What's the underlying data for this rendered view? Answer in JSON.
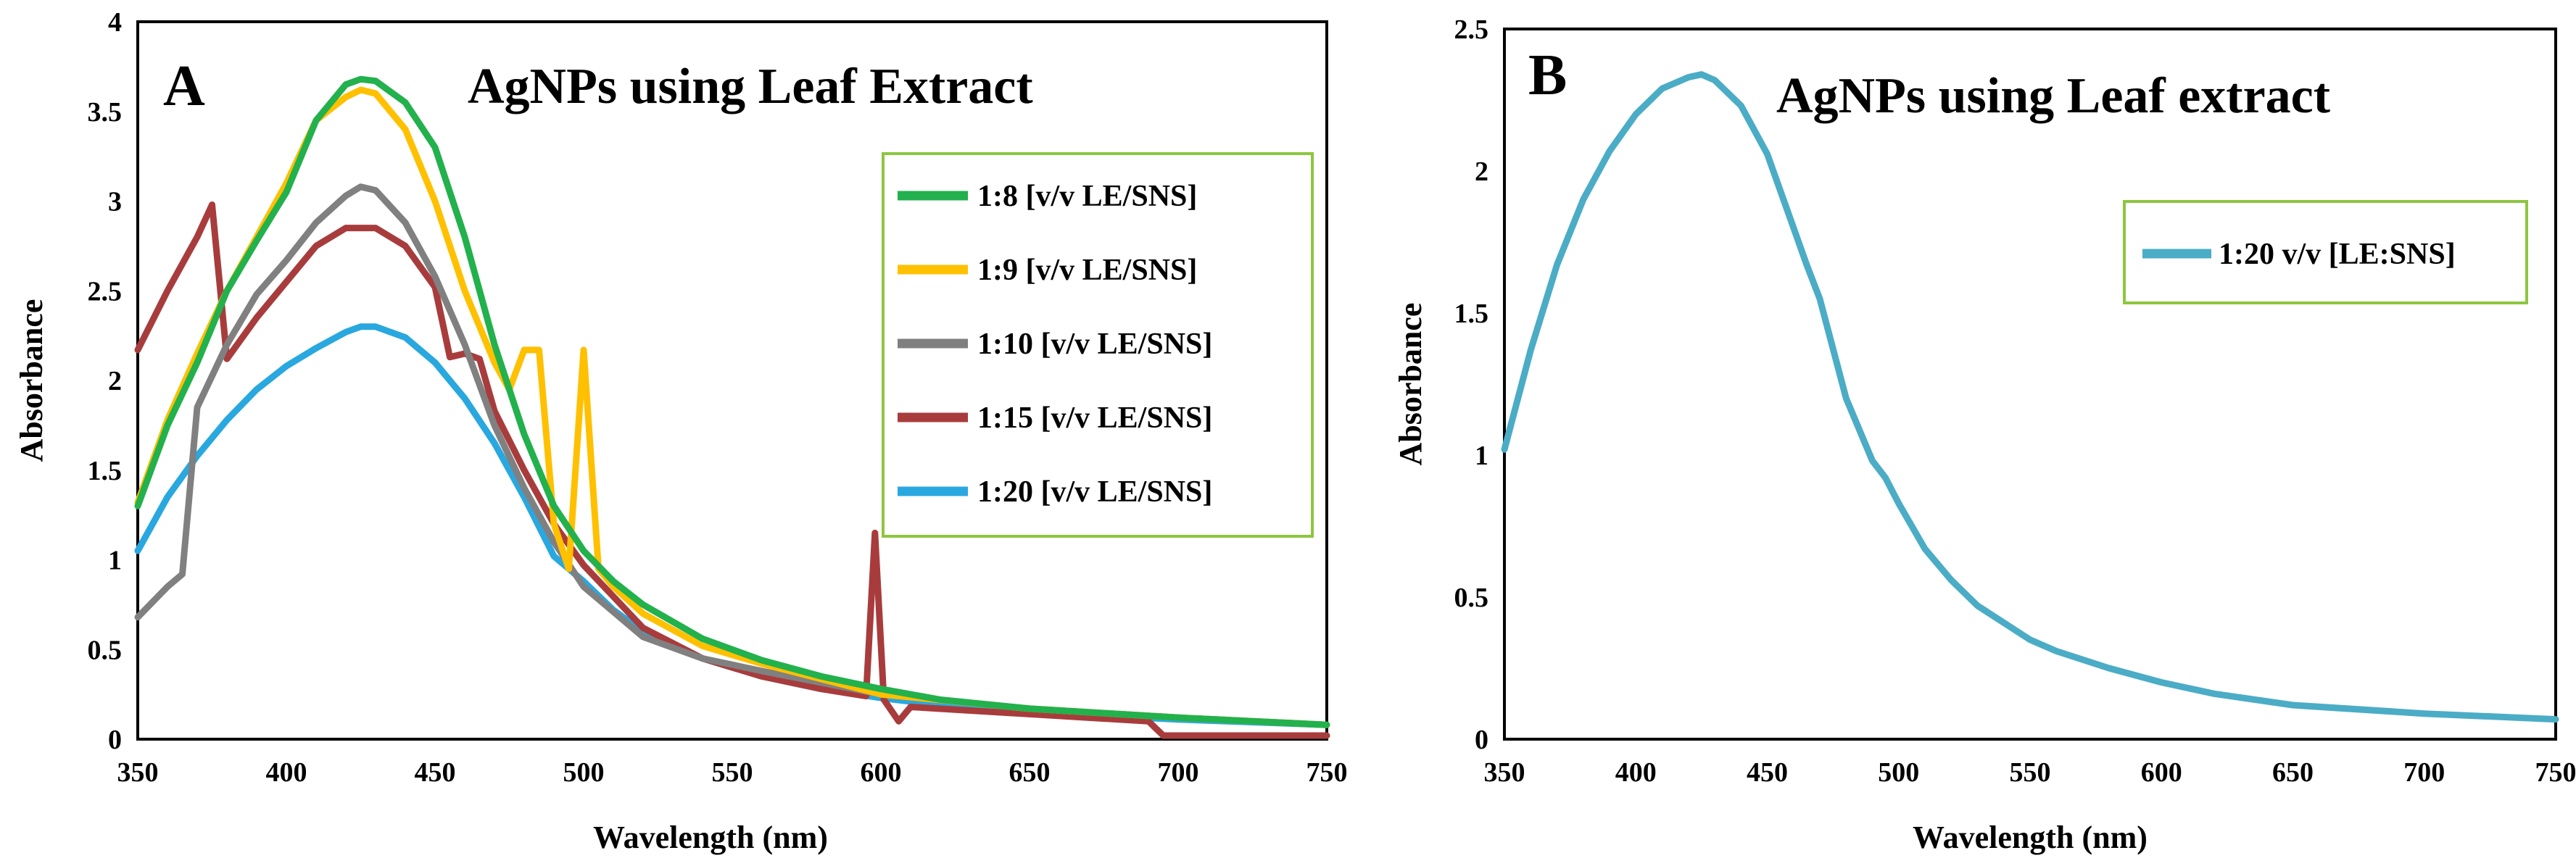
{
  "chart_data": [
    {
      "type": "line",
      "panel": "A",
      "title": "AgNPs using Leaf Extract",
      "xlabel": "Wavelength (nm)",
      "ylabel": "Absorbance",
      "xlim": [
        350,
        750
      ],
      "ylim": [
        0,
        4
      ],
      "xticks": [
        350,
        400,
        450,
        500,
        550,
        600,
        650,
        700,
        750
      ],
      "yticks": [
        0,
        0.5,
        1,
        1.5,
        2,
        2.5,
        3,
        3.5,
        4
      ],
      "ytick_labels": [
        "0",
        "0.5",
        "1",
        "1.5",
        "2",
        "2.5",
        "3",
        "3.5",
        "4"
      ],
      "legend_position": "top-right",
      "series": [
        {
          "name": "1:20 [v/v LE/SNS]",
          "color": "#29a8df",
          "x": [
            350,
            360,
            370,
            380,
            390,
            400,
            410,
            420,
            425,
            430,
            440,
            450,
            460,
            470,
            480,
            490,
            500,
            510,
            520,
            540,
            560,
            580,
            600,
            620,
            650,
            700,
            750
          ],
          "y": [
            1.05,
            1.35,
            1.58,
            1.78,
            1.95,
            2.08,
            2.18,
            2.27,
            2.3,
            2.3,
            2.24,
            2.1,
            1.9,
            1.65,
            1.35,
            1.02,
            0.88,
            0.72,
            0.6,
            0.45,
            0.35,
            0.28,
            0.23,
            0.19,
            0.15,
            0.11,
            0.08
          ]
        },
        {
          "name": "1:15 [v/v LE/SNS]",
          "color": "#a83c3c",
          "x": [
            350,
            360,
            370,
            375,
            380,
            390,
            400,
            410,
            420,
            430,
            440,
            450,
            455,
            460,
            465,
            470,
            480,
            490,
            500,
            520,
            540,
            560,
            580,
            595,
            598,
            601,
            606,
            610,
            650,
            690,
            695,
            750
          ],
          "y": [
            2.17,
            2.5,
            2.8,
            2.98,
            2.12,
            2.35,
            2.55,
            2.75,
            2.85,
            2.85,
            2.75,
            2.52,
            2.13,
            2.15,
            2.12,
            1.83,
            1.5,
            1.2,
            0.97,
            0.62,
            0.45,
            0.35,
            0.28,
            0.24,
            1.15,
            0.22,
            0.1,
            0.18,
            0.14,
            0.1,
            0.02,
            0.02
          ]
        },
        {
          "name": "1:10 [v/v LE/SNS]",
          "color": "#808080",
          "x": [
            350,
            360,
            365,
            370,
            380,
            390,
            400,
            410,
            420,
            425,
            430,
            440,
            450,
            460,
            470,
            480,
            490,
            500,
            520,
            540,
            560,
            600,
            650,
            700,
            750
          ],
          "y": [
            0.68,
            0.85,
            0.92,
            1.85,
            2.2,
            2.48,
            2.67,
            2.88,
            3.03,
            3.08,
            3.06,
            2.88,
            2.58,
            2.2,
            1.75,
            1.4,
            1.1,
            0.85,
            0.57,
            0.45,
            0.38,
            0.25,
            0.17,
            0.12,
            0.08
          ]
        },
        {
          "name": "1:9 [v/v LE/SNS]",
          "color": "#ffc000",
          "x": [
            350,
            360,
            370,
            380,
            390,
            400,
            410,
            420,
            425,
            430,
            440,
            450,
            460,
            470,
            475,
            480,
            485,
            490,
            495,
            500,
            505,
            510,
            520,
            540,
            560,
            600,
            650,
            700,
            750
          ],
          "y": [
            1.32,
            1.78,
            2.15,
            2.5,
            2.8,
            3.1,
            3.45,
            3.58,
            3.62,
            3.6,
            3.4,
            3.0,
            2.5,
            2.1,
            1.95,
            2.17,
            2.17,
            1.2,
            0.95,
            2.17,
            0.95,
            0.85,
            0.7,
            0.52,
            0.42,
            0.25,
            0.17,
            0.12,
            0.08
          ]
        },
        {
          "name": "1:8 [v/v LE/SNS]",
          "color": "#22b14c",
          "x": [
            350,
            360,
            370,
            380,
            390,
            400,
            410,
            420,
            425,
            430,
            440,
            450,
            460,
            470,
            480,
            490,
            500,
            510,
            520,
            540,
            560,
            580,
            600,
            620,
            650,
            700,
            750
          ],
          "y": [
            1.3,
            1.75,
            2.1,
            2.5,
            2.78,
            3.05,
            3.45,
            3.65,
            3.68,
            3.67,
            3.55,
            3.3,
            2.8,
            2.2,
            1.7,
            1.3,
            1.05,
            0.88,
            0.75,
            0.56,
            0.44,
            0.35,
            0.28,
            0.22,
            0.17,
            0.12,
            0.08
          ]
        }
      ],
      "legend_order": [
        "1:8 [v/v LE/SNS]",
        "1:9 [v/v LE/SNS]",
        "1:10 [v/v LE/SNS]",
        "1:15 [v/v LE/SNS]",
        "1:20 [v/v LE/SNS]"
      ],
      "legend_colors": [
        "#22b14c",
        "#ffc000",
        "#808080",
        "#a83c3c",
        "#29a8df"
      ],
      "legend_border_color": "#8dc63f"
    },
    {
      "type": "line",
      "panel": "B",
      "title": "AgNPs using Leaf extract",
      "xlabel": "Wavelength (nm)",
      "ylabel": "Absorbance",
      "xlim": [
        350,
        750
      ],
      "ylim": [
        0,
        2.5
      ],
      "xticks": [
        350,
        400,
        450,
        500,
        550,
        600,
        650,
        700,
        750
      ],
      "yticks": [
        0,
        0.5,
        1,
        1.5,
        2,
        2.5
      ],
      "ytick_labels": [
        "0",
        "0.5",
        "1",
        "1.5",
        "2",
        "2.5"
      ],
      "legend_position": "top-right",
      "series": [
        {
          "name": "1:20 v/v [LE:SNS]",
          "color": "#4bacc6",
          "x": [
            350,
            360,
            370,
            380,
            390,
            400,
            410,
            420,
            425,
            430,
            440,
            450,
            460,
            465,
            470,
            480,
            490,
            495,
            500,
            510,
            520,
            530,
            540,
            550,
            560,
            580,
            600,
            620,
            650,
            700,
            750
          ],
          "y": [
            1.02,
            1.37,
            1.67,
            1.9,
            2.07,
            2.2,
            2.29,
            2.33,
            2.34,
            2.32,
            2.23,
            2.06,
            1.8,
            1.67,
            1.55,
            1.2,
            0.98,
            0.92,
            0.83,
            0.67,
            0.56,
            0.47,
            0.41,
            0.35,
            0.31,
            0.25,
            0.2,
            0.16,
            0.12,
            0.09,
            0.07
          ]
        }
      ],
      "legend_colors": [
        "#4bacc6"
      ],
      "legend_border_color": "#8dc63f"
    }
  ]
}
